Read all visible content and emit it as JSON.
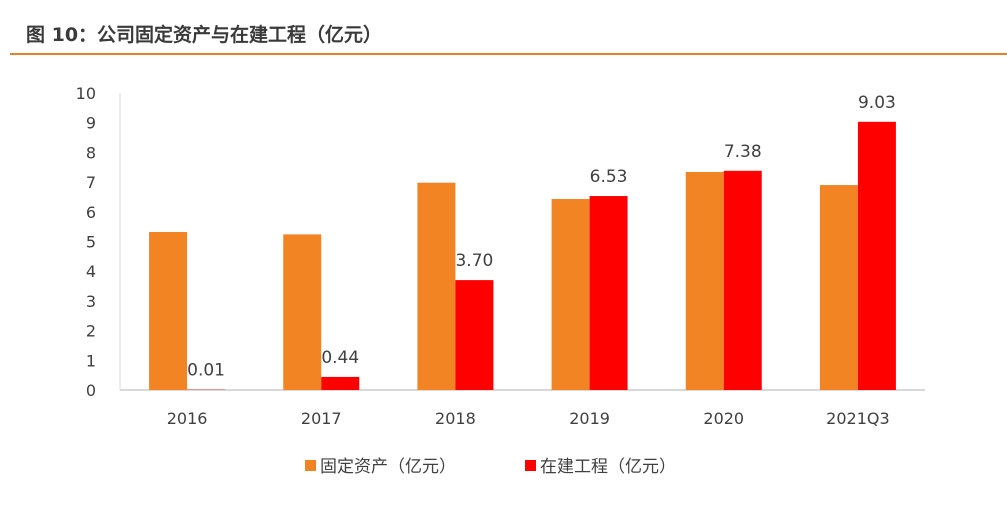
{
  "title": "图 10：公司固定资产与在建工程（亿元）",
  "chart_data": {
    "type": "bar",
    "title": "",
    "xlabel": "",
    "ylabel": "",
    "categories": [
      "2016",
      "2017",
      "2018",
      "2019",
      "2020",
      "2021Q3"
    ],
    "ylim": [
      0,
      10
    ],
    "yticks": [
      "0",
      "1",
      "2",
      "3",
      "4",
      "5",
      "6",
      "7",
      "8",
      "9",
      "10"
    ],
    "grid": false,
    "legend_position": "bottom",
    "series": [
      {
        "name": "固定资产（亿元）",
        "color": "#F28424",
        "values": [
          5.32,
          5.24,
          6.98,
          6.43,
          7.34,
          6.9
        ],
        "labels": [
          "",
          "",
          "",
          "",
          "",
          ""
        ]
      },
      {
        "name": "在建工程（亿元）",
        "color": "#FF0000",
        "values": [
          0.01,
          0.44,
          3.7,
          6.53,
          7.38,
          9.03
        ],
        "labels": [
          "0.01",
          "0.44",
          "3.70",
          "6.53",
          "7.38",
          "9.03"
        ]
      }
    ]
  }
}
